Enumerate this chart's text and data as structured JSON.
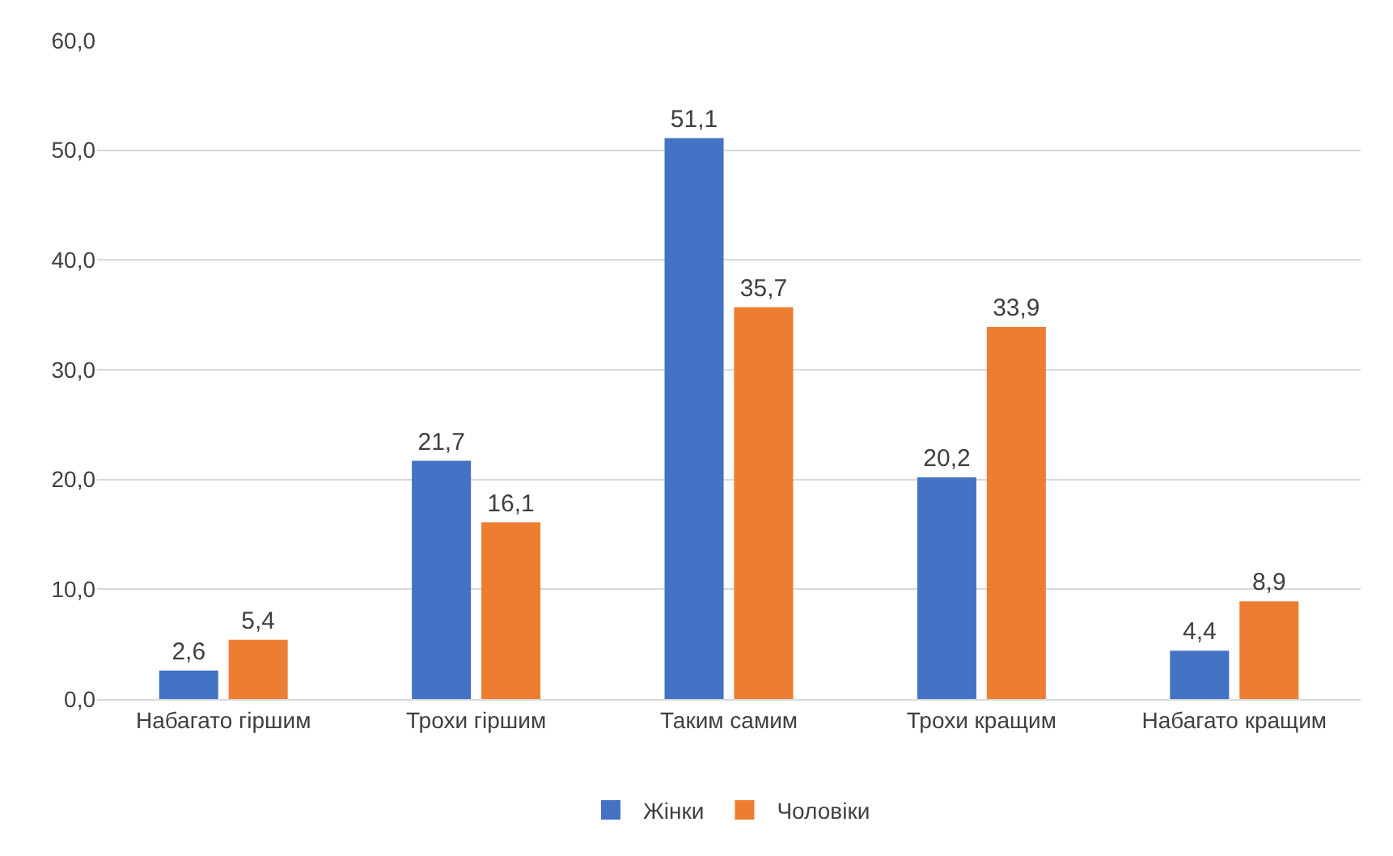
{
  "chart_data": {
    "type": "bar",
    "categories": [
      "Набагато гіршим",
      "Трохи гіршим",
      "Таким самим",
      "Трохи кращим",
      "Набагато кращим"
    ],
    "series": [
      {
        "name": "Жінки",
        "color": "#4472c4",
        "values": [
          2.6,
          21.7,
          51.1,
          20.2,
          4.4
        ],
        "value_labels": [
          "2,6",
          "21,7",
          "51,1",
          "20,2",
          "4,4"
        ]
      },
      {
        "name": "Чоловіки",
        "color": "#ed7d31",
        "values": [
          5.4,
          16.1,
          35.7,
          33.9,
          8.9
        ],
        "value_labels": [
          "5,4",
          "16,1",
          "35,7",
          "33,9",
          "8,9"
        ]
      }
    ],
    "ylim": [
      0,
      60
    ],
    "yticks": [
      {
        "value": 0,
        "label": "0,0"
      },
      {
        "value": 10,
        "label": "10,0"
      },
      {
        "value": 20,
        "label": "20,0"
      },
      {
        "value": 30,
        "label": "30,0"
      },
      {
        "value": 40,
        "label": "40,0"
      },
      {
        "value": 50,
        "label": "50,0"
      },
      {
        "value": 60,
        "label": "60,0"
      }
    ],
    "grid": "y",
    "legend": "bottom"
  }
}
